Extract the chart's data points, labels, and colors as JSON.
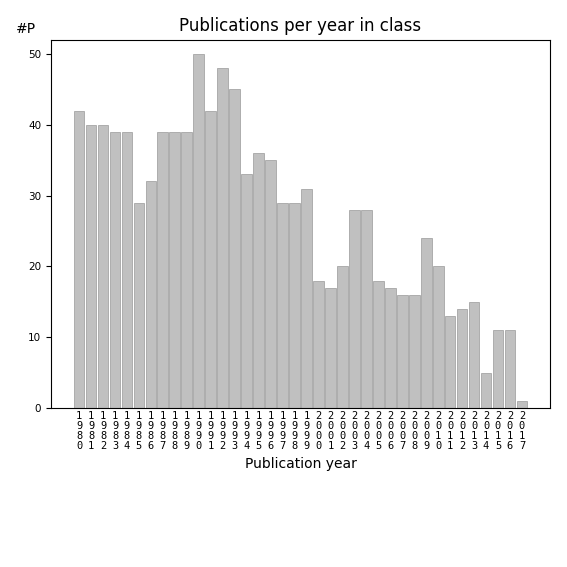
{
  "title": "Publications per year in class",
  "xlabel": "Publication year",
  "ylabel": "#P",
  "years": [
    1980,
    1981,
    1982,
    1983,
    1984,
    1985,
    1986,
    1987,
    1988,
    1989,
    1990,
    1991,
    1992,
    1993,
    1994,
    1995,
    1996,
    1997,
    1998,
    1999,
    2000,
    2001,
    2002,
    2003,
    2004,
    2005,
    2006,
    2007,
    2008,
    2009,
    2010,
    2011,
    2012,
    2013,
    2014,
    2015,
    2016,
    2017
  ],
  "values": [
    42,
    40,
    40,
    39,
    39,
    29,
    32,
    39,
    39,
    39,
    50,
    42,
    48,
    45,
    33,
    36,
    35,
    29,
    29,
    31,
    18,
    17,
    20,
    28,
    28,
    18,
    17,
    16,
    16,
    24,
    20,
    13,
    14,
    15,
    5,
    11,
    11,
    1
  ],
  "bar_color": "#c0c0c0",
  "bar_edgecolor": "#888888",
  "ylim": [
    0,
    52
  ],
  "yticks": [
    0,
    10,
    20,
    30,
    40,
    50
  ],
  "background_color": "#ffffff",
  "title_fontsize": 12,
  "axis_label_fontsize": 10,
  "tick_fontsize": 7.5
}
